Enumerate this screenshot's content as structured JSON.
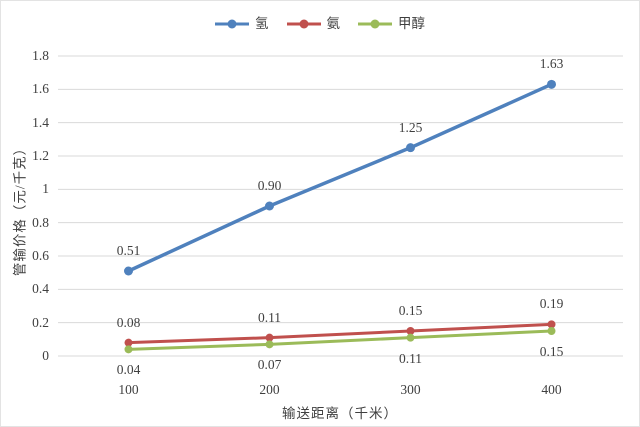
{
  "chart_data": {
    "type": "line",
    "title": "",
    "xlabel": "输送距离（千米）",
    "ylabel": "管输价格（元/千克）",
    "categories": [
      "100",
      "200",
      "300",
      "400"
    ],
    "series": [
      {
        "name": "氢",
        "color": "#4F81BD",
        "values": [
          0.51,
          0.9,
          1.25,
          1.63
        ],
        "labels": [
          "0.51",
          "0.90",
          "1.25",
          "1.63"
        ],
        "label_position": "above"
      },
      {
        "name": "氨",
        "color": "#C0504D",
        "values": [
          0.08,
          0.11,
          0.15,
          0.19
        ],
        "labels": [
          "0.08",
          "0.11",
          "0.15",
          "0.19"
        ],
        "label_position": "above"
      },
      {
        "name": "甲醇",
        "color": "#9BBB59",
        "values": [
          0.04,
          0.07,
          0.11,
          0.15
        ],
        "labels": [
          "0.04",
          "0.07",
          "0.11",
          "0.15"
        ],
        "label_position": "below"
      }
    ],
    "y_ticks": [
      "0",
      "0.2",
      "0.4",
      "0.6",
      "0.8",
      "1",
      "1.2",
      "1.4",
      "1.6",
      "1.8"
    ],
    "ylim": [
      0,
      1.8
    ],
    "grid": true,
    "legend_position": "top",
    "colors": {
      "gridline": "#D9D9D9",
      "axis_line": "#D0D0D0",
      "text": "#3F3F3F"
    }
  }
}
